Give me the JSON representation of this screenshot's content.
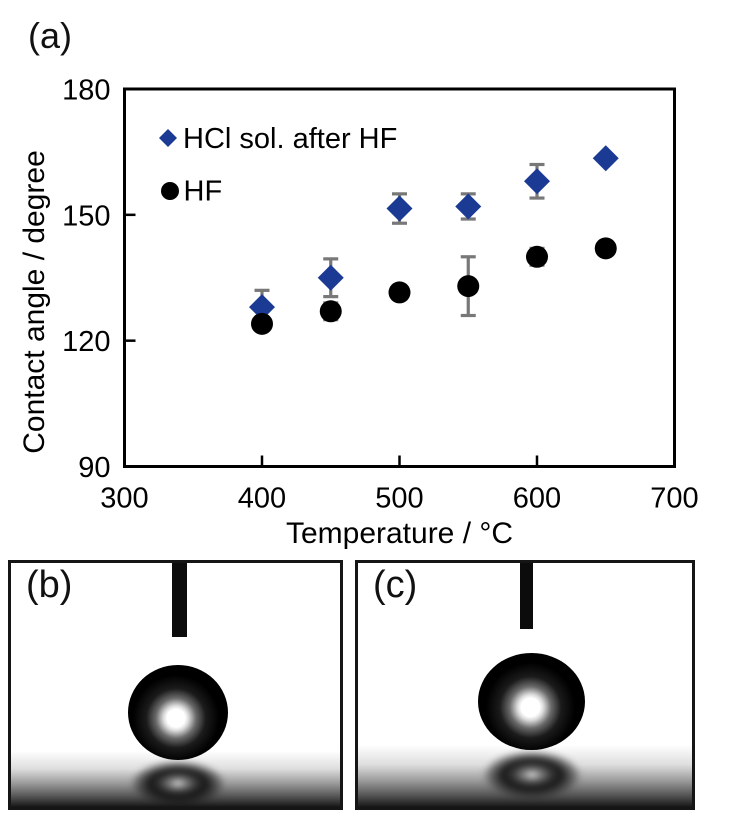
{
  "figure": {
    "panel_a_label": "(a)",
    "panel_b_label": "(b)",
    "panel_c_label": "(c)"
  },
  "chart_data": {
    "type": "scatter",
    "title": "",
    "xlabel": "Temperature / °C",
    "ylabel": "Contact angle / degree",
    "xlim": [
      300,
      700
    ],
    "ylim": [
      90,
      180
    ],
    "xticks": [
      300,
      400,
      500,
      600,
      700
    ],
    "yticks": [
      90,
      120,
      150,
      180
    ],
    "grid": false,
    "legend_position": "top-left-inside",
    "error_bar_color": "#787878",
    "x": [
      400,
      450,
      500,
      550,
      600,
      650
    ],
    "series": [
      {
        "name": "HCl sol. after HF",
        "marker": "diamond",
        "color": "#1b3a94",
        "values": [
          128,
          135,
          151.5,
          152,
          158,
          163.5
        ],
        "errors": [
          4,
          4.5,
          3.5,
          3,
          4,
          0
        ]
      },
      {
        "name": "HF",
        "marker": "circle",
        "color": "#000000",
        "values": [
          124,
          127,
          131.5,
          133,
          140,
          142
        ],
        "errors": [
          0,
          2,
          0,
          7,
          2,
          0
        ]
      }
    ]
  },
  "photos": {
    "b": {
      "label": "(b)",
      "content": "sessile water droplet with needle and reflection"
    },
    "c": {
      "label": "(c)",
      "content": "sessile water droplet with needle and reflection"
    }
  }
}
